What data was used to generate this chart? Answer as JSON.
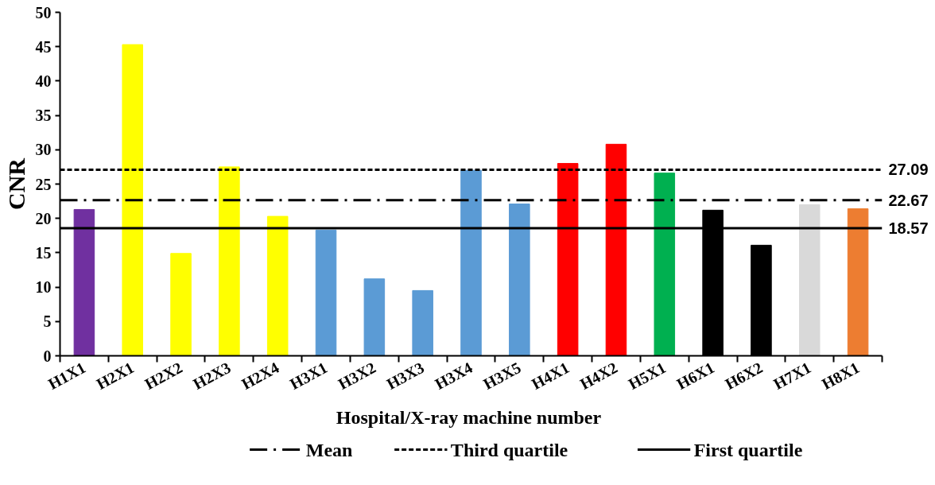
{
  "chart_data": {
    "type": "bar",
    "xlabel": "Hospital/X-ray machine  number",
    "ylabel": "CNR",
    "categories": [
      "H1X1",
      "H2X1",
      "H2X2",
      "H2X3",
      "H2X4",
      "H3X1",
      "H3X2",
      "H3X3",
      "H3X4",
      "H3X5",
      "H4X1",
      "H4X2",
      "H5X1",
      "H6X1",
      "H6X2",
      "H7X1",
      "H8X1"
    ],
    "values": [
      21.3,
      45.3,
      14.9,
      27.5,
      20.3,
      18.3,
      11.2,
      9.5,
      27.0,
      22.1,
      28.0,
      30.8,
      26.6,
      21.2,
      16.1,
      22.0,
      21.4
    ],
    "colors": [
      "#7030a0",
      "#ffff00",
      "#ffff00",
      "#ffff00",
      "#ffff00",
      "#5b9bd5",
      "#5b9bd5",
      "#5b9bd5",
      "#5b9bd5",
      "#5b9bd5",
      "#ff0000",
      "#ff0000",
      "#00b050",
      "#000000",
      "#000000",
      "#d9d9d9",
      "#ed7d31"
    ],
    "ylim": [
      0,
      50
    ],
    "yticks": [
      0,
      5,
      10,
      15,
      20,
      25,
      30,
      35,
      40,
      45,
      50
    ],
    "ref_lines": [
      {
        "axis": "y",
        "value": 22.67,
        "label": "Mean",
        "line_style": "dashdot",
        "color": "#000000"
      },
      {
        "axis": "y",
        "value": 27.09,
        "label": "Third quartile",
        "line_style": "dashed",
        "color": "#000000"
      },
      {
        "axis": "y",
        "value": 18.57,
        "label": "First quartile",
        "line_style": "solid",
        "color": "#000000"
      }
    ],
    "annotations": [
      "22.67",
      "27.09",
      "18.57"
    ],
    "legend": "bottom",
    "grid": false
  }
}
